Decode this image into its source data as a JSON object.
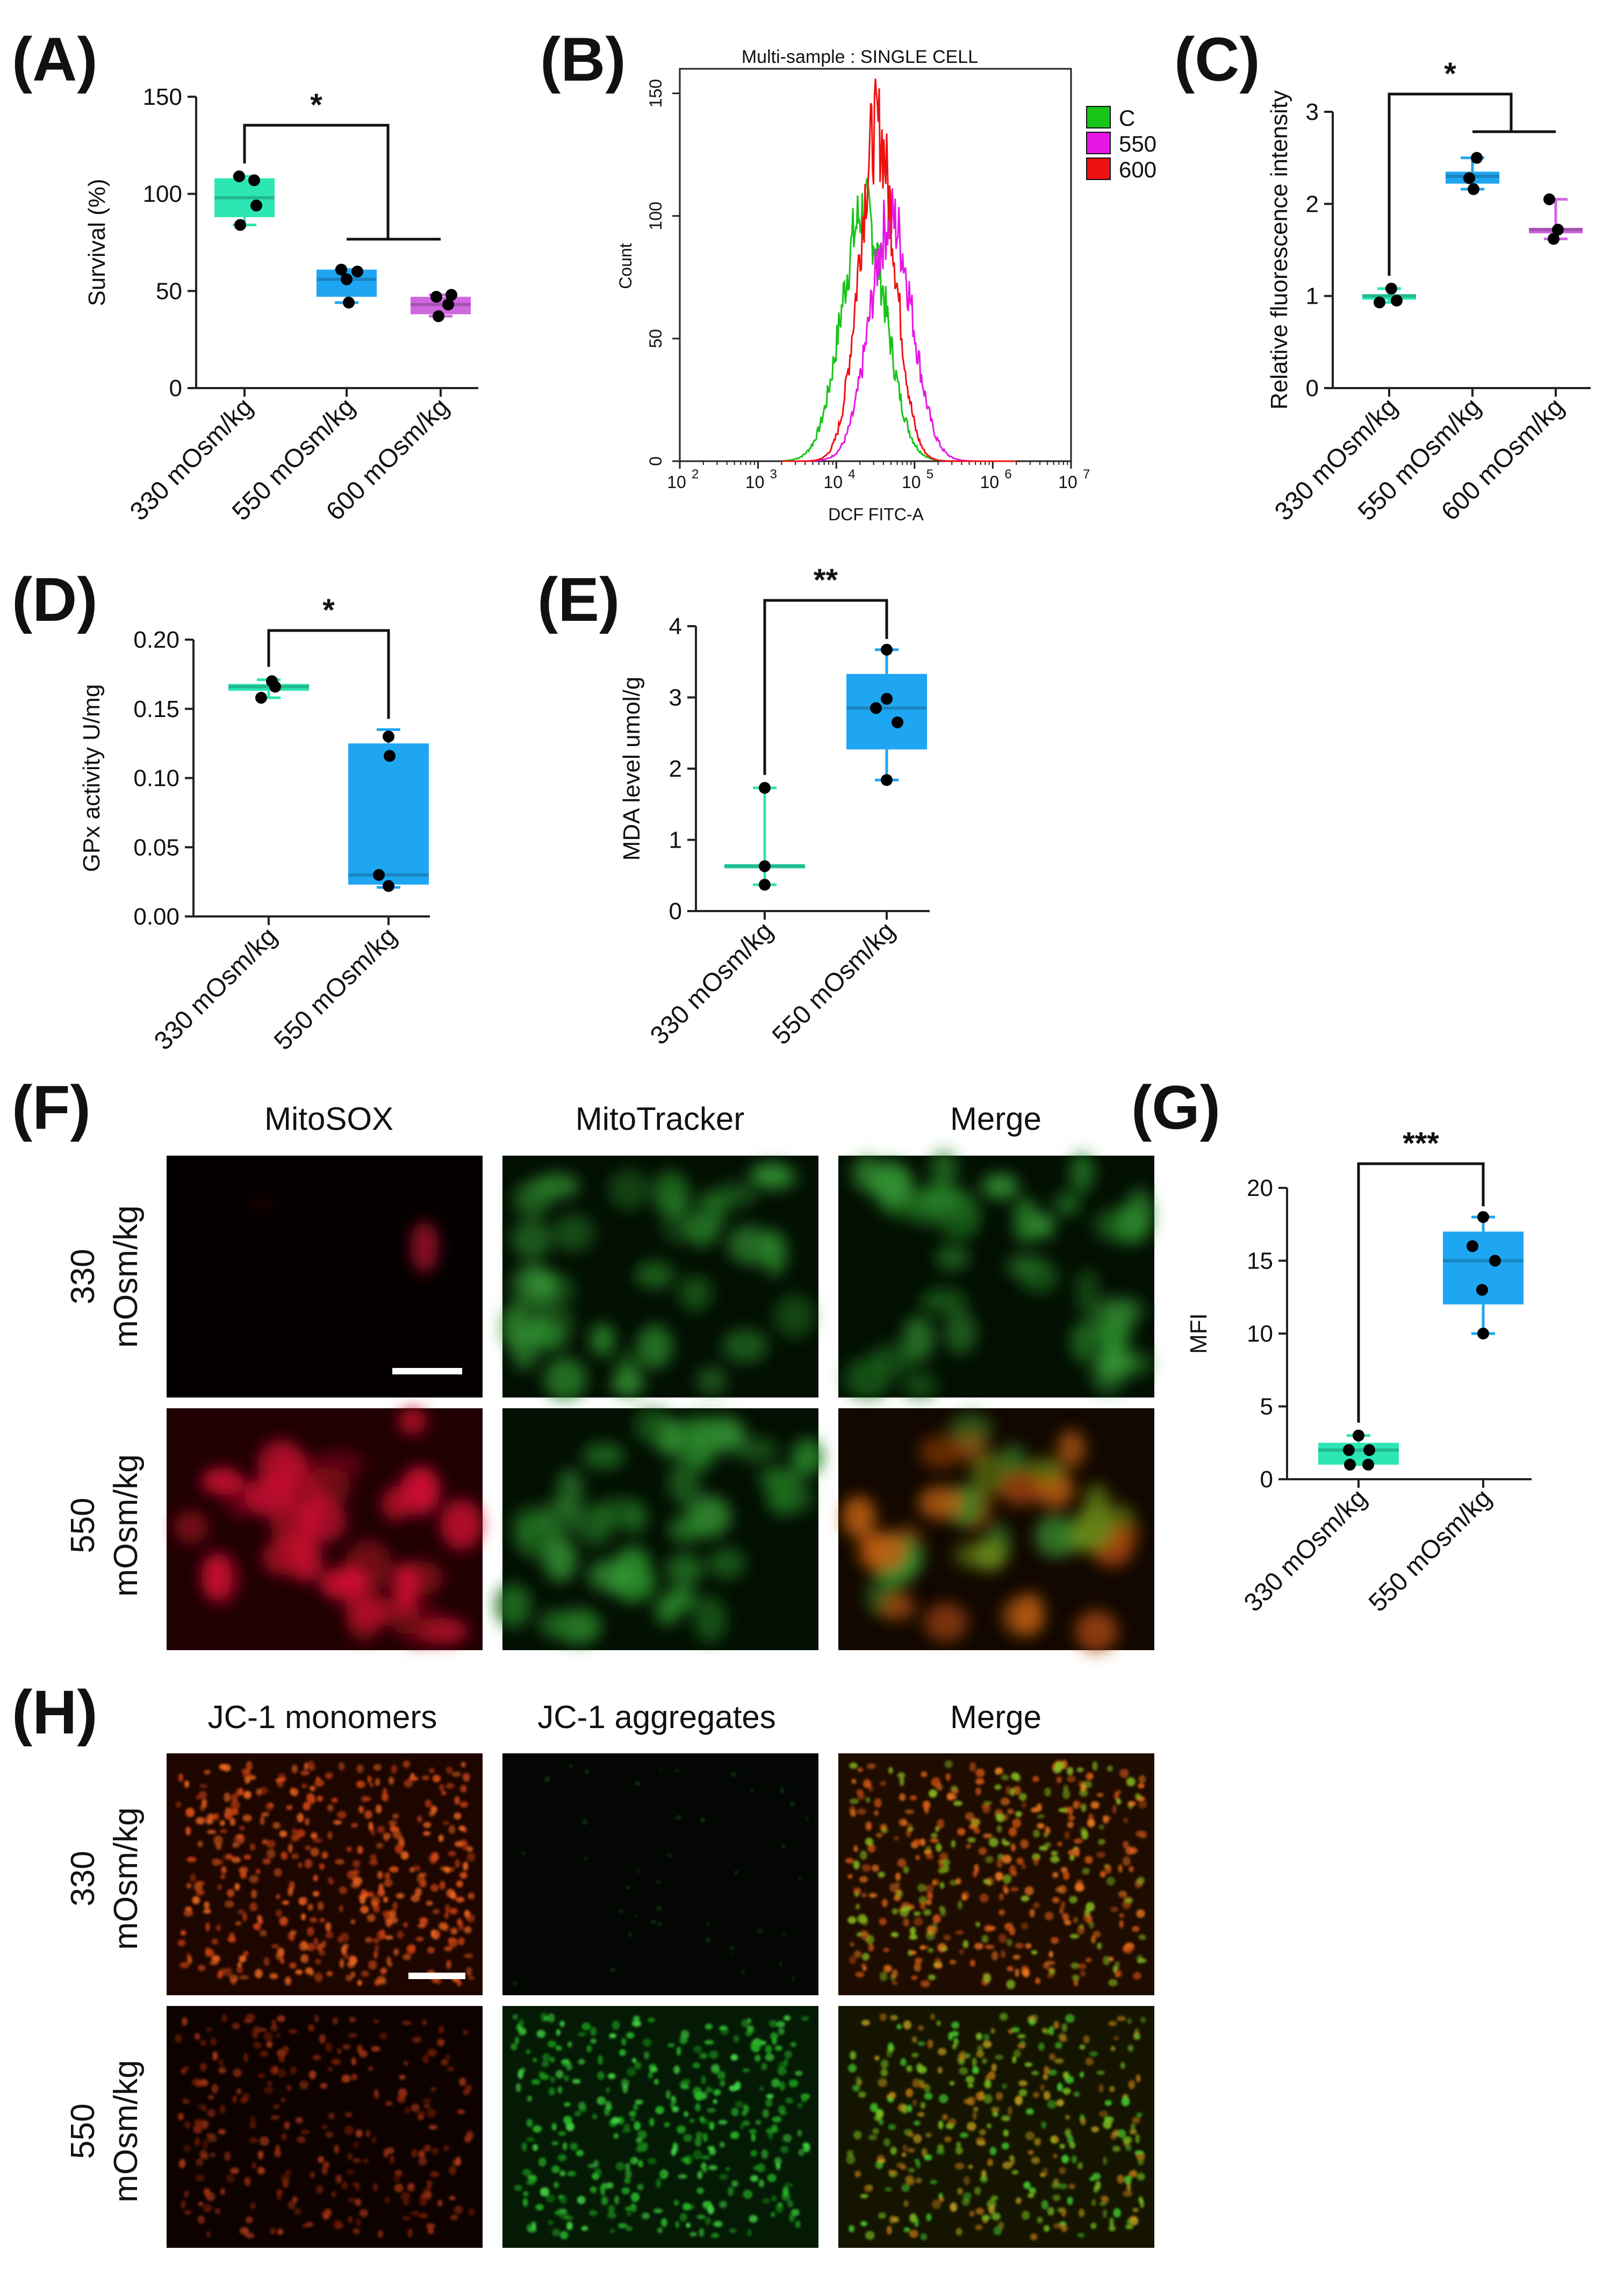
{
  "colors": {
    "c330": "#2ce6b4",
    "c550": "#1fa6f2",
    "c600": "#d067e0",
    "histC": "#18c418",
    "hist550": "#e617e6",
    "hist600": "#ee1111"
  },
  "panels": {
    "A": "(A)",
    "B": "(B)",
    "C": "(C)",
    "D": "(D)",
    "E": "(E)",
    "F": "(F)",
    "G": "(G)",
    "H": "(H)"
  },
  "chart_data": [
    {
      "id": "A",
      "type": "box",
      "categories": [
        "330 mOsm/kg",
        "550 mOsm/kg",
        "600 mOsm/kg"
      ],
      "ylabel": "Survival (%)",
      "ylim": [
        0,
        150
      ],
      "yticks": [
        "0",
        "50",
        "100",
        "150"
      ],
      "series": [
        {
          "category": "330 mOsm/kg",
          "min": 84,
          "q1": 88,
          "median": 98,
          "q3": 108,
          "max": 109,
          "points": [
            109,
            107,
            84,
            94
          ]
        },
        {
          "category": "550 mOsm/kg",
          "min": 44,
          "q1": 47,
          "median": 56,
          "q3": 61,
          "max": 61,
          "points": [
            61,
            60,
            44,
            56
          ]
        },
        {
          "category": "600 mOsm/kg",
          "min": 37,
          "q1": 38,
          "median": 43,
          "q3": 47,
          "max": 48,
          "points": [
            47,
            48,
            37,
            43
          ]
        }
      ],
      "significance": [
        {
          "label": "*",
          "from": "330 mOsm/kg",
          "to": [
            "550 mOsm/kg",
            "600 mOsm/kg"
          ]
        }
      ]
    },
    {
      "id": "B",
      "type": "histogram",
      "title": "Multi-sample : SINGLE CELL",
      "xlabel": "DCF FITC-A",
      "ylabel": "Count",
      "xscale": "log",
      "xlim": [
        100,
        10000000
      ],
      "xticks": [
        "10",
        "10",
        "10",
        "10",
        "10",
        "10"
      ],
      "xtick_exponents": [
        "2",
        "3",
        "4",
        "5",
        "6",
        "7"
      ],
      "ylim": [
        0,
        160
      ],
      "yticks": [
        "0",
        "50",
        "100",
        "150"
      ],
      "legend": {
        "position": "right",
        "entries": [
          "C",
          "550",
          "600"
        ]
      },
      "series": [
        {
          "name": "C",
          "peak_log10x": 4.35,
          "peak_count": 105,
          "width": 0.42
        },
        {
          "name": "550",
          "peak_log10x": 4.7,
          "peak_count": 102,
          "width": 0.4
        },
        {
          "name": "600",
          "peak_log10x": 4.52,
          "peak_count": 140,
          "width": 0.34
        }
      ]
    },
    {
      "id": "C",
      "type": "box",
      "categories": [
        "330 mOsm/kg",
        "550 mOsm/kg",
        "600 mOsm/kg"
      ],
      "ylabel": "Relative fluorescence intensity",
      "ylim": [
        0,
        3
      ],
      "yticks": [
        "0",
        "1",
        "2",
        "3"
      ],
      "series": [
        {
          "category": "330 mOsm/kg",
          "min": 0.93,
          "q1": 0.96,
          "median": 1.0,
          "q3": 1.02,
          "max": 1.08,
          "points": [
            1.08,
            0.93,
            0.95
          ]
        },
        {
          "category": "550 mOsm/kg",
          "min": 2.16,
          "q1": 2.22,
          "median": 2.3,
          "q3": 2.35,
          "max": 2.5,
          "points": [
            2.5,
            2.16,
            2.28
          ]
        },
        {
          "category": "600 mOsm/kg",
          "min": 1.62,
          "q1": 1.68,
          "median": 1.72,
          "q3": 1.74,
          "max": 2.05,
          "points": [
            2.05,
            1.62,
            1.72
          ]
        }
      ],
      "significance": [
        {
          "label": "*",
          "from": "330 mOsm/kg",
          "to": [
            "550 mOsm/kg",
            "600 mOsm/kg"
          ]
        }
      ]
    },
    {
      "id": "D",
      "type": "box",
      "categories": [
        "330 mOsm/kg",
        "550 mOsm/kg"
      ],
      "ylabel": "GPx activity U/mg",
      "ylim": [
        0,
        0.2
      ],
      "yticks": [
        "0.00",
        "0.05",
        "0.10",
        "0.15",
        "0.20"
      ],
      "series": [
        {
          "category": "330 mOsm/kg",
          "min": 0.158,
          "q1": 0.163,
          "median": 0.166,
          "q3": 0.168,
          "max": 0.171,
          "points": [
            0.17,
            0.158,
            0.166
          ]
        },
        {
          "category": "550 mOsm/kg",
          "min": 0.021,
          "q1": 0.023,
          "median": 0.03,
          "q3": 0.125,
          "max": 0.135,
          "points": [
            0.13,
            0.116,
            0.03,
            0.022
          ]
        }
      ],
      "significance": [
        {
          "label": "*",
          "from": "330 mOsm/kg",
          "to": [
            "550 mOsm/kg"
          ]
        }
      ]
    },
    {
      "id": "E",
      "type": "box",
      "categories": [
        "330 mOsm/kg",
        "550 mOsm/kg"
      ],
      "ylabel": "MDA level  umol/g",
      "ylim": [
        0,
        4
      ],
      "yticks": [
        "0",
        "1",
        "2",
        "3",
        "4"
      ],
      "series": [
        {
          "category": "330 mOsm/kg",
          "min": 0.37,
          "q1": 0.6,
          "median": 0.63,
          "q3": 0.66,
          "max": 1.73,
          "points": [
            1.73,
            0.63,
            0.37
          ]
        },
        {
          "category": "550 mOsm/kg",
          "min": 1.84,
          "q1": 2.27,
          "median": 2.85,
          "q3": 3.33,
          "max": 3.67,
          "points": [
            3.67,
            2.98,
            2.85,
            2.65,
            1.84
          ]
        }
      ],
      "significance": [
        {
          "label": "**",
          "from": "330 mOsm/kg",
          "to": [
            "550 mOsm/kg"
          ]
        }
      ]
    },
    {
      "id": "G",
      "type": "box",
      "categories": [
        "330 mOsm/kg",
        "550 mOsm/kg"
      ],
      "ylabel": "MFI",
      "ylim": [
        0,
        20
      ],
      "yticks": [
        "0",
        "5",
        "10",
        "15",
        "20"
      ],
      "series": [
        {
          "category": "330 mOsm/kg",
          "min": 1,
          "q1": 1,
          "median": 2,
          "q3": 2.5,
          "max": 3,
          "points": [
            3,
            2,
            2,
            1,
            1
          ]
        },
        {
          "category": "550 mOsm/kg",
          "min": 10,
          "q1": 12,
          "median": 15,
          "q3": 17,
          "max": 18,
          "points": [
            18,
            16,
            15,
            13,
            10
          ]
        }
      ],
      "significance": [
        {
          "label": "***",
          "from": "330 mOsm/kg",
          "to": [
            "550 mOsm/kg"
          ]
        }
      ]
    }
  ],
  "micrographs_F": {
    "columns": [
      "MitoSOX",
      "MitoTracker",
      "Merge"
    ],
    "rows": [
      {
        "line1": "330",
        "line2": "mOsm/kg"
      },
      {
        "line1": "550",
        "line2": "mOsm/kg"
      }
    ]
  },
  "micrographs_H": {
    "columns": [
      "JC-1 monomers",
      "JC-1 aggregates",
      "Merge"
    ],
    "rows": [
      {
        "line1": "330",
        "line2": "mOsm/kg"
      },
      {
        "line1": "550",
        "line2": "mOsm/kg"
      }
    ]
  }
}
